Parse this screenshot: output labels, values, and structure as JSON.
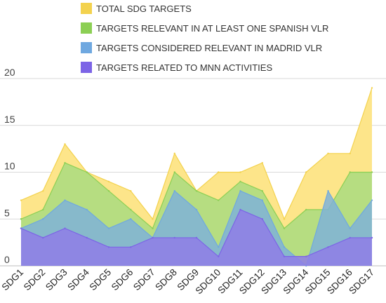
{
  "chart_data": {
    "type": "area",
    "categories": [
      "SDG1",
      "SDG2",
      "SDG3",
      "SDG4",
      "SDG5",
      "SDG6",
      "SDG7",
      "SDG8",
      "SDG9",
      "SDG10",
      "SDG11",
      "SDG12",
      "SDG13",
      "SDG14",
      "SDG15",
      "SDG16",
      "SDG17"
    ],
    "series": [
      {
        "name": "TOTAL SDG TARGETS",
        "color": "#fde58a",
        "stroke": "#f3d24e",
        "values": [
          7,
          8,
          13,
          10,
          9,
          8,
          5,
          12,
          8,
          10,
          10,
          11,
          5,
          10,
          12,
          12,
          19
        ]
      },
      {
        "name": "TARGETS RELEVANT IN AT LEAST ONE SPANISH VLR",
        "color": "#a9dc7f",
        "stroke": "#8ccf54",
        "values": [
          5,
          6,
          11,
          10,
          8,
          6,
          4,
          10,
          8,
          7,
          9,
          8,
          4,
          6,
          6,
          10,
          10
        ]
      },
      {
        "name": "TARGETS CONSIDERED RELEVANT IN MADRID VLR",
        "color": "#7fb3d8",
        "stroke": "#6fa8e0",
        "values": [
          4,
          5,
          7,
          6,
          4,
          5,
          3,
          8,
          6,
          2,
          8,
          7,
          2,
          0,
          8,
          4,
          7
        ]
      },
      {
        "name": "TARGETS RELATED TO MNN ACTIVITIES",
        "color": "#8f7de8",
        "stroke": "#7c64e6",
        "values": [
          4,
          3,
          4,
          3,
          2,
          2,
          3,
          3,
          3,
          1,
          6,
          5,
          1,
          1,
          2,
          3,
          3
        ]
      }
    ],
    "yticks": [
      0,
      5,
      10,
      15,
      20
    ],
    "ylim": [
      0,
      20
    ],
    "grid": true,
    "legend_position": "top"
  }
}
